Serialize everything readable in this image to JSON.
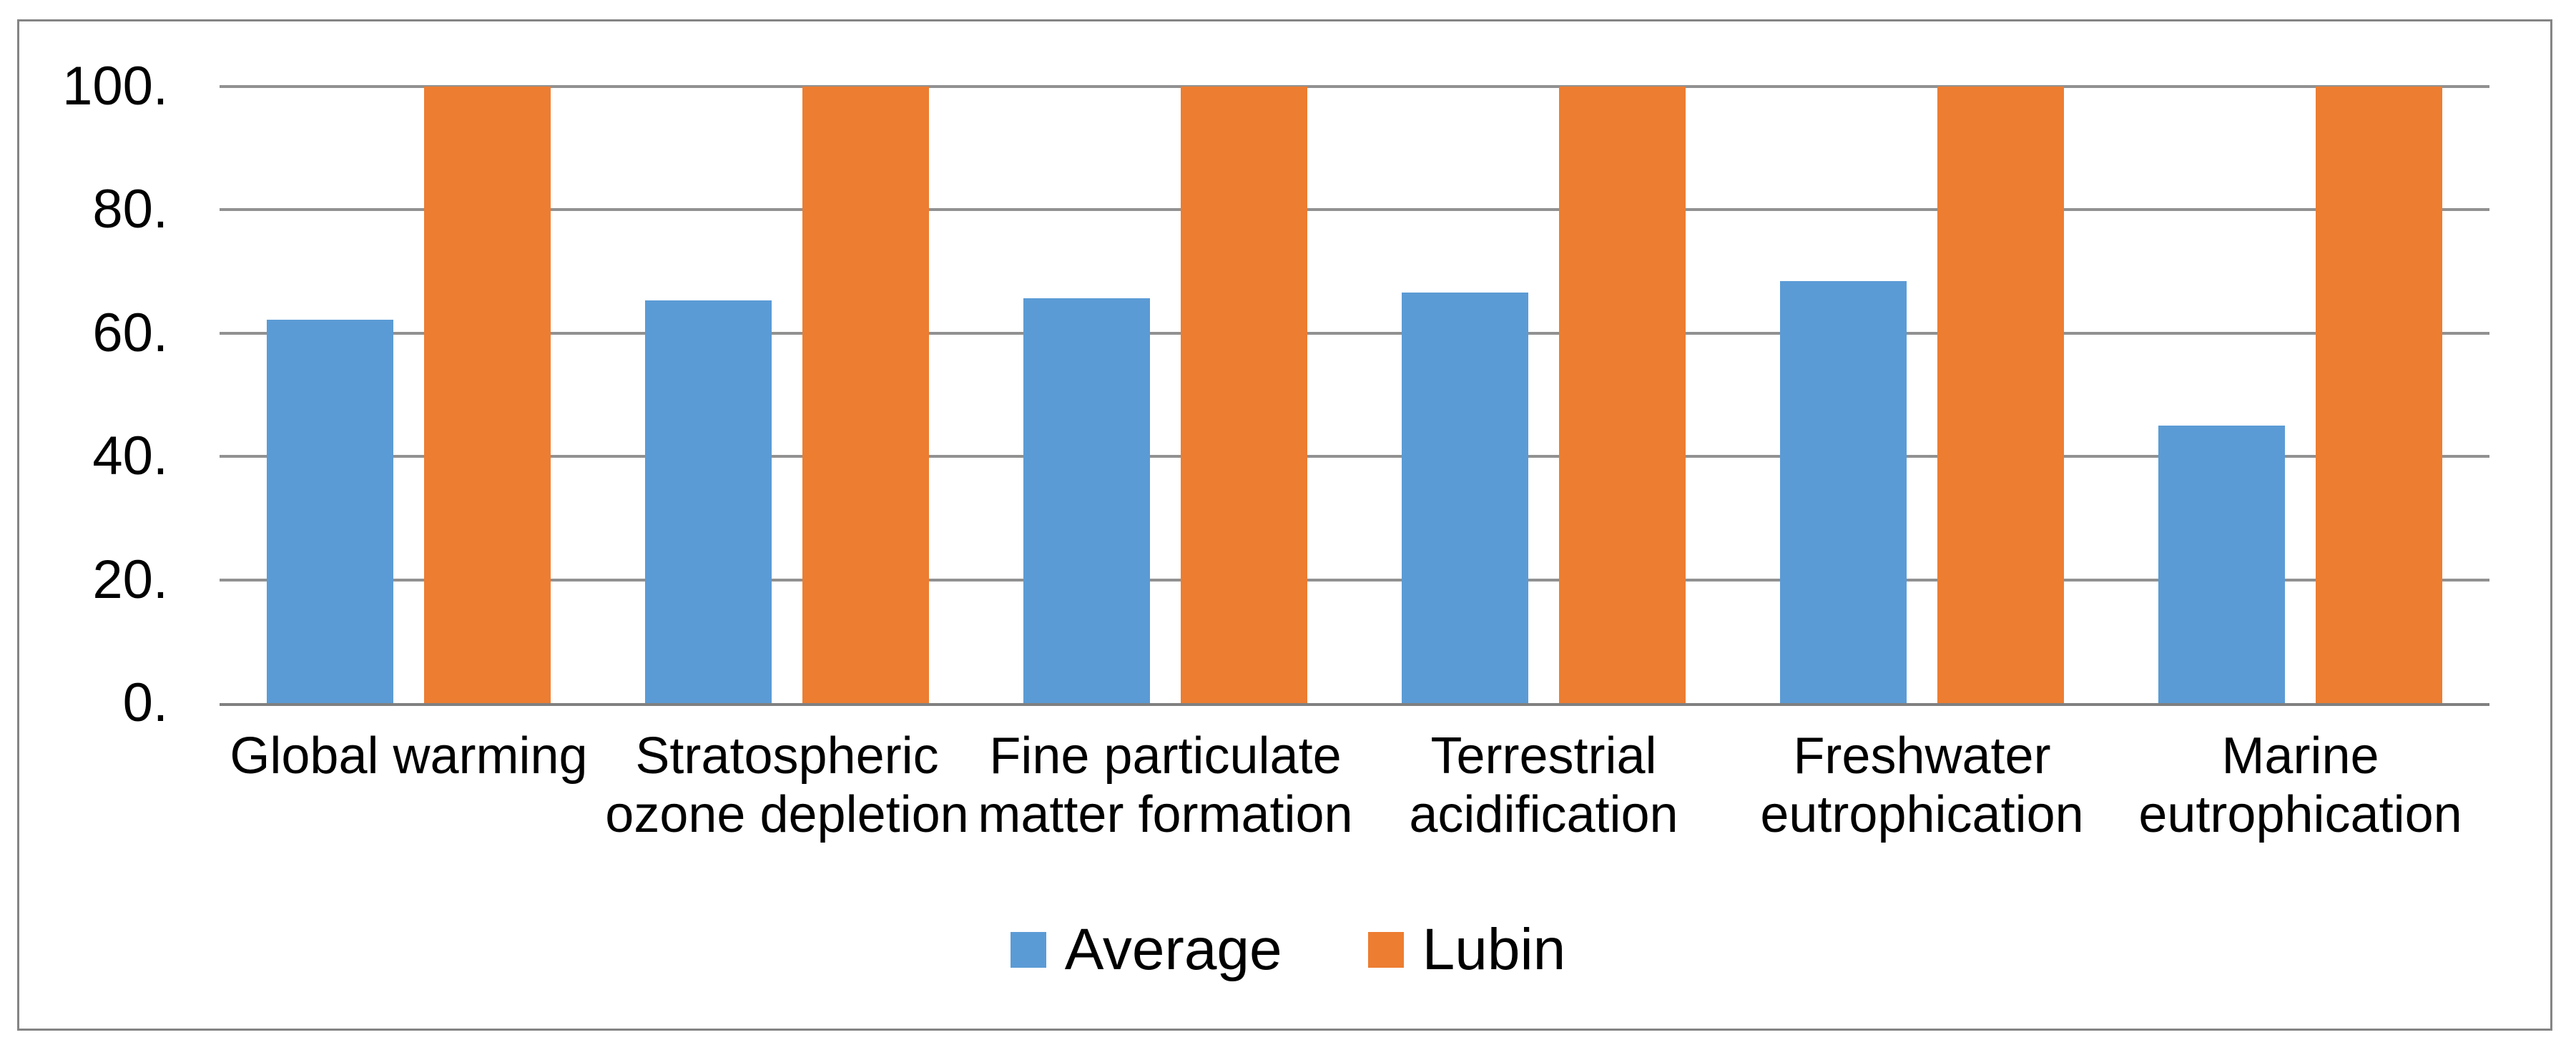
{
  "chart_data": {
    "type": "bar",
    "categories": [
      "Global warming",
      "Stratospheric ozone depletion",
      "Fine particulate matter formation",
      "Terrestrial acidification",
      "Freshwater eutrophication",
      "Marine eutrophication"
    ],
    "category_lines": [
      [
        "Global warming"
      ],
      [
        "Stratospheric",
        "ozone depletion"
      ],
      [
        "Fine particulate",
        "matter formation"
      ],
      [
        "Terrestrial",
        "acidification"
      ],
      [
        "Freshwater",
        "eutrophication"
      ],
      [
        "Marine",
        "eutrophication"
      ]
    ],
    "series": [
      {
        "name": "Average",
        "color": "#5B9BD5",
        "values": [
          62.2,
          65.3,
          65.7,
          66.6,
          68.5,
          45.0
        ]
      },
      {
        "name": "Lubin",
        "color": "#ED7D31",
        "values": [
          100,
          100,
          100,
          100,
          100,
          100
        ]
      }
    ],
    "ytick_values": [
      100,
      80,
      60,
      40,
      20,
      0
    ],
    "ytick_labels": [
      "100.",
      "80.",
      "60.",
      "40.",
      "20.",
      "0."
    ],
    "ylim": [
      0,
      100
    ],
    "grid": true,
    "legend_position": "bottom"
  },
  "colors": {
    "series_average": "#5B9BD5",
    "series_lubin": "#ED7D31",
    "gridline": "#919191",
    "axis_line": "#808080",
    "border": "#848484",
    "background": "#FFFFFF",
    "text": "#000000"
  }
}
